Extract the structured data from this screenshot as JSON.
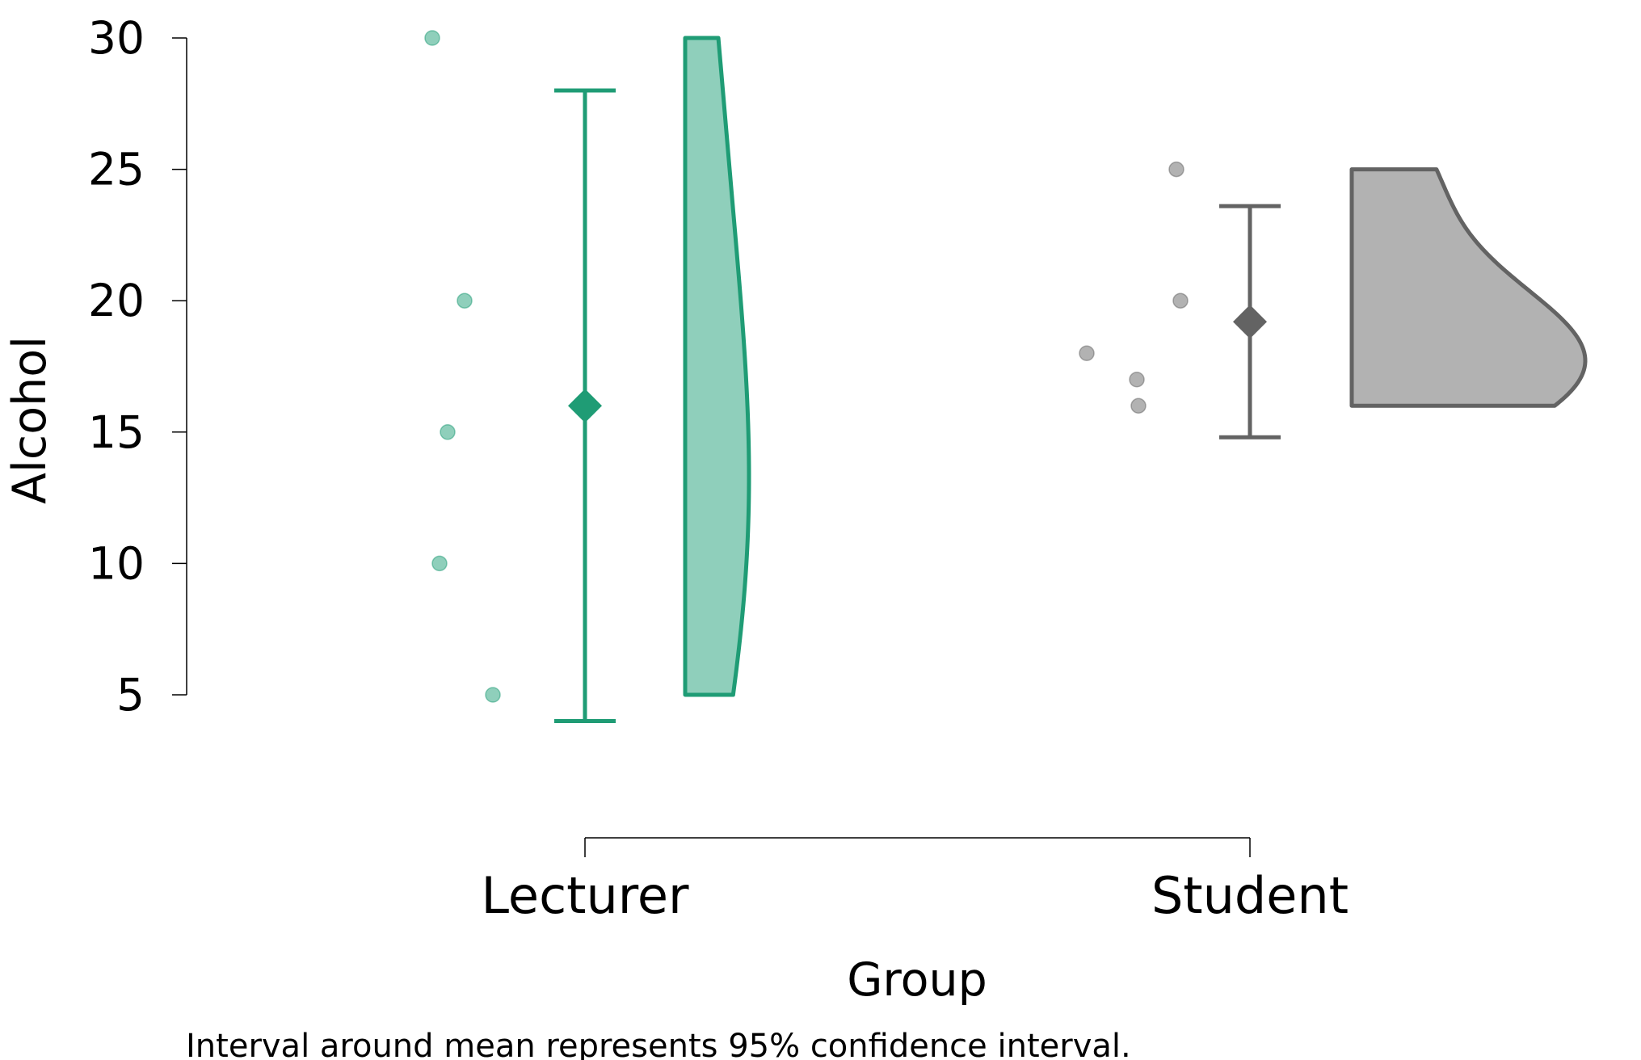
{
  "chart_data": {
    "type": "raincloud",
    "xlabel": "Group",
    "ylabel": "Alcohol",
    "ylim": [
      5,
      30
    ],
    "yticks": [
      5,
      10,
      15,
      20,
      25,
      30
    ],
    "categories": [
      "Lecturer",
      "Student"
    ],
    "colors": {
      "Lecturer": "#1f9c75",
      "Student": "#636363"
    },
    "fills": {
      "Lecturer": "#8fcfbb",
      "Student": "#b2b2b2"
    },
    "series": [
      {
        "category": "Lecturer",
        "points": [
          30,
          20,
          15,
          10,
          5
        ],
        "mean": 16,
        "ci": [
          4,
          28
        ]
      },
      {
        "category": "Student",
        "points": [
          25,
          20,
          18,
          17,
          16
        ],
        "mean": 19.2,
        "ci": [
          14.8,
          23.6
        ]
      }
    ],
    "footnote": "Interval around mean represents 95% confidence interval."
  }
}
